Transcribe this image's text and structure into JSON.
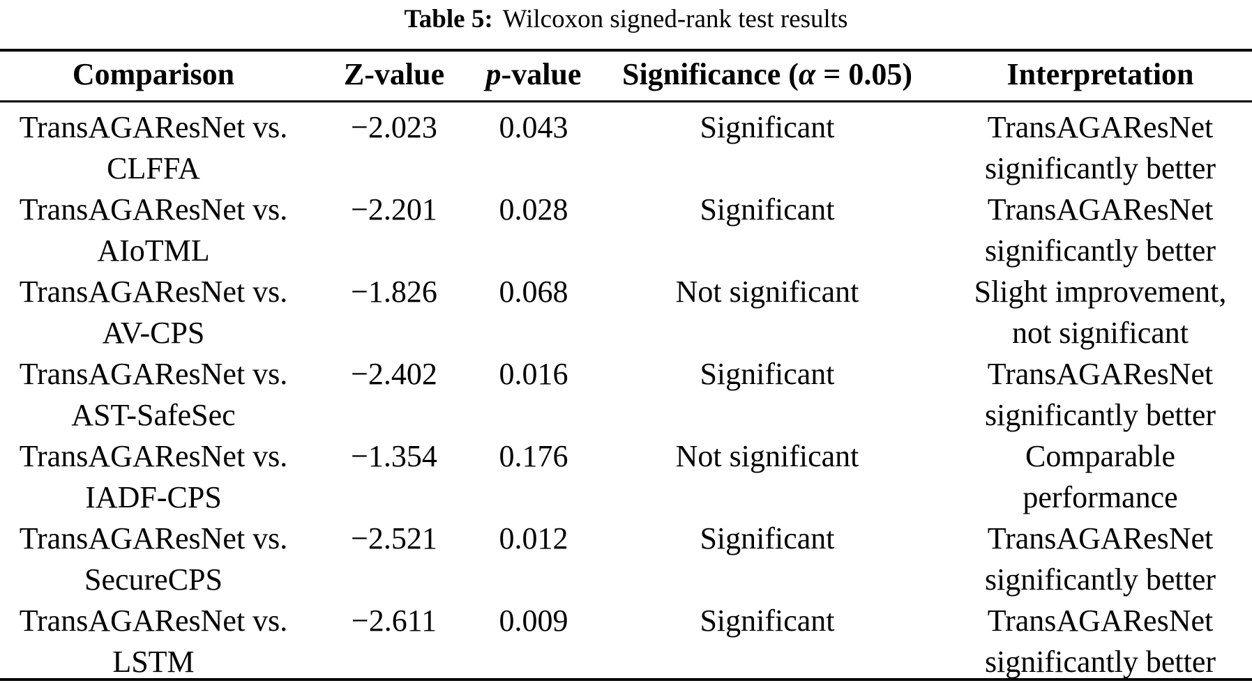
{
  "caption": {
    "label": "Table 5:",
    "title": "Wilcoxon signed-rank test results"
  },
  "table": {
    "headers": {
      "comparison": "Comparison",
      "z_value": "Z-value",
      "p_italic": "p",
      "p_rest": "-value",
      "sig_pre": "Significance (",
      "sig_alpha": "α",
      "sig_post": " = 0.05)",
      "interpretation": "Interpretation"
    },
    "rows": [
      {
        "comparison": [
          "TransAGAResNet vs.",
          "CLFFA"
        ],
        "z": "−2.023",
        "p": "0.043",
        "significance": "Significant",
        "interpretation": [
          "TransAGAResNet",
          "significantly better"
        ]
      },
      {
        "comparison": [
          "TransAGAResNet vs.",
          "AIoTML"
        ],
        "z": "−2.201",
        "p": "0.028",
        "significance": "Significant",
        "interpretation": [
          "TransAGAResNet",
          "significantly better"
        ]
      },
      {
        "comparison": [
          "TransAGAResNet vs.",
          "AV-CPS"
        ],
        "z": "−1.826",
        "p": "0.068",
        "significance": "Not significant",
        "interpretation": [
          "Slight improvement,",
          "not significant"
        ]
      },
      {
        "comparison": [
          "TransAGAResNet vs.",
          "AST-SafeSec"
        ],
        "z": "−2.402",
        "p": "0.016",
        "significance": "Significant",
        "interpretation": [
          "TransAGAResNet",
          "significantly better"
        ]
      },
      {
        "comparison": [
          "TransAGAResNet vs.",
          "IADF-CPS"
        ],
        "z": "−1.354",
        "p": "0.176",
        "significance": "Not significant",
        "interpretation": [
          "Comparable",
          "performance"
        ]
      },
      {
        "comparison": [
          "TransAGAResNet vs.",
          "SecureCPS"
        ],
        "z": "−2.521",
        "p": "0.012",
        "significance": "Significant",
        "interpretation": [
          "TransAGAResNet",
          "significantly better"
        ]
      },
      {
        "comparison": [
          "TransAGAResNet vs.",
          "LSTM"
        ],
        "z": "−2.611",
        "p": "0.009",
        "significance": "Significant",
        "interpretation": [
          "TransAGAResNet",
          "significantly better"
        ]
      }
    ]
  },
  "colors": {
    "text": "#000000",
    "background": "#ffffff",
    "rule": "#000000"
  }
}
